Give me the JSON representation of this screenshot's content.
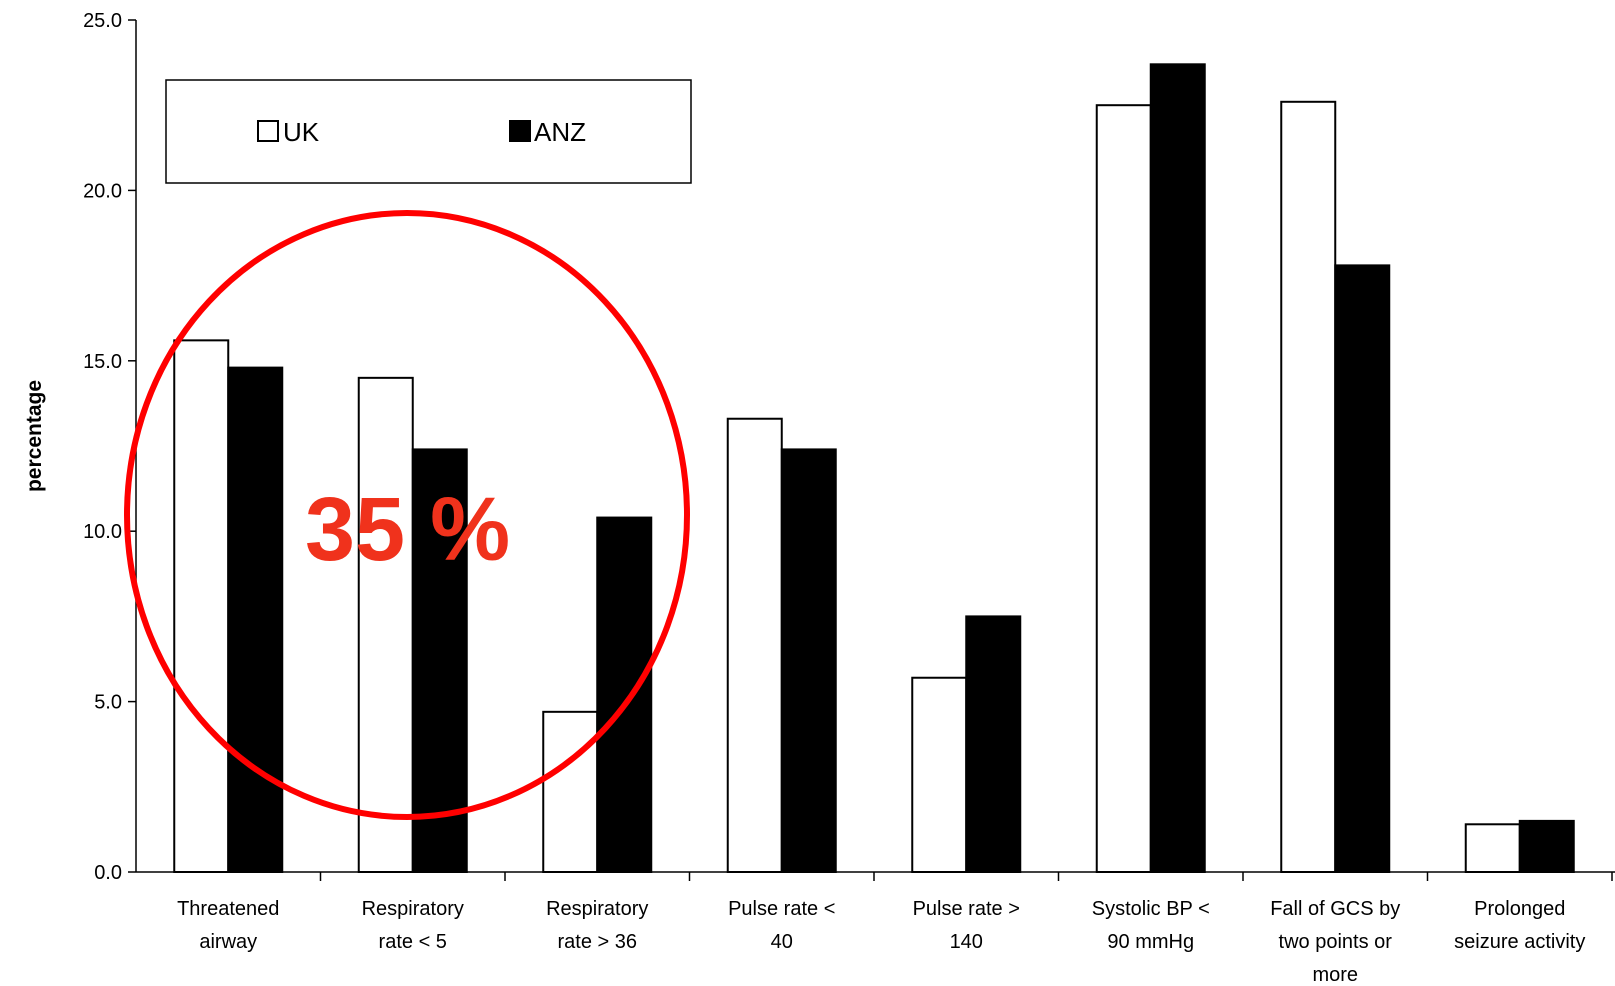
{
  "chart_data": {
    "type": "bar",
    "ylabel": "percentage",
    "ylim": [
      0,
      25
    ],
    "yticks": [
      "0.0",
      "5.0",
      "10.0",
      "15.0",
      "20.0",
      "25.0"
    ],
    "categories": [
      [
        "Threatened",
        "airway"
      ],
      [
        "Respiratory",
        "rate < 5"
      ],
      [
        "Respiratory",
        "rate > 36"
      ],
      [
        "Pulse rate <",
        "40"
      ],
      [
        "Pulse rate >",
        "140"
      ],
      [
        "Systolic BP <",
        "90 mmHg"
      ],
      [
        "Fall of GCS by",
        "two points or",
        "more"
      ],
      [
        "Prolonged",
        "seizure activity"
      ]
    ],
    "series": [
      {
        "name": "UK",
        "fill": "#ffffff",
        "values": [
          15.6,
          14.5,
          4.7,
          13.3,
          5.7,
          22.5,
          22.6,
          1.4
        ]
      },
      {
        "name": "ANZ",
        "fill": "#000000",
        "values": [
          14.8,
          12.4,
          10.4,
          12.4,
          7.5,
          23.7,
          17.8,
          1.5
        ]
      }
    ],
    "legend": {
      "position": "top-left",
      "box": true
    },
    "grid": false
  },
  "annotation": {
    "text": "35 %",
    "color": "#f0321c",
    "circle_color": "#ff0000"
  }
}
